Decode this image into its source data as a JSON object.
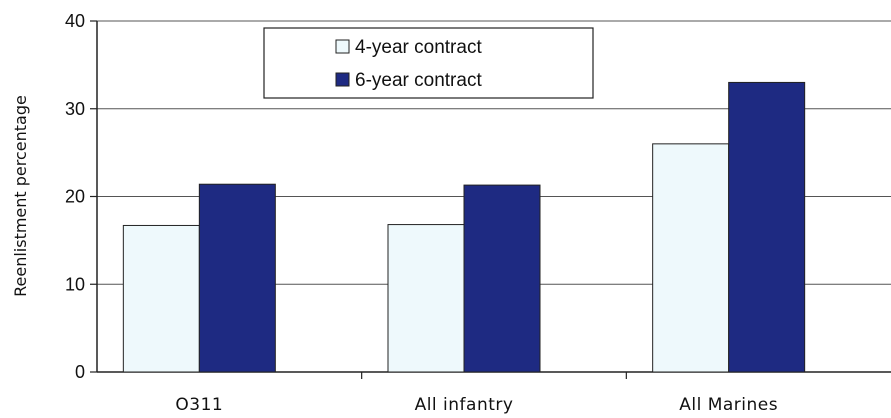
{
  "chart_data": {
    "type": "bar",
    "title": "",
    "xlabel": "",
    "ylabel": "Reenlistment percentage",
    "ylim": [
      0,
      40
    ],
    "yticks": [
      "0",
      "10",
      "20",
      "30",
      "40"
    ],
    "grid": true,
    "legend_position": "top-center",
    "categories": [
      "O311",
      "All infantry",
      "All Marines"
    ],
    "series": [
      {
        "name": "4-year contract",
        "values": [
          16.7,
          16.8,
          26.0
        ],
        "color": "#eef9fc"
      },
      {
        "name": "6-year contract",
        "values": [
          21.4,
          21.3,
          33.0
        ],
        "color": "#1e2a82"
      }
    ]
  }
}
